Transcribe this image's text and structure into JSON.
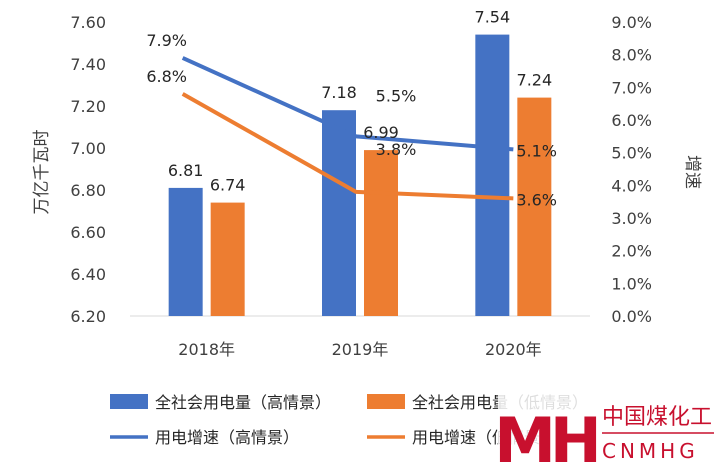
{
  "chart_data": {
    "type": "bar+line",
    "categories": [
      "2018年",
      "2019年",
      "2020年"
    ],
    "y_left": {
      "label": "万亿千瓦时",
      "lim": [
        6.2,
        7.6
      ],
      "ticks": [
        "6.20",
        "6.40",
        "6.60",
        "6.80",
        "7.00",
        "7.20",
        "7.40",
        "7.60"
      ]
    },
    "y_right": {
      "label": "增速",
      "lim": [
        0.0,
        9.0
      ],
      "ticks": [
        "0.0%",
        "1.0%",
        "2.0%",
        "3.0%",
        "4.0%",
        "5.0%",
        "6.0%",
        "7.0%",
        "8.0%",
        "9.0%"
      ]
    },
    "bar_series": [
      {
        "name": "全社会用电量（高情景）",
        "values": [
          6.81,
          7.18,
          7.54
        ],
        "labels": [
          "6.81",
          "7.18",
          "7.54"
        ],
        "color": "#4472C4"
      },
      {
        "name": "全社会用电量（低情景）",
        "values": [
          6.74,
          6.99,
          7.24
        ],
        "labels": [
          "6.74",
          "6.99",
          "7.24"
        ],
        "color": "#ED7D31"
      }
    ],
    "line_series": [
      {
        "name": "用电增速（高情景）",
        "values": [
          7.9,
          5.5,
          5.1
        ],
        "labels": [
          "7.9%",
          "5.5%",
          "5.1%"
        ],
        "color": "#4472C4"
      },
      {
        "name": "用电增速（低情景）",
        "values": [
          6.8,
          3.8,
          3.6
        ],
        "labels": [
          "6.8%",
          "3.8%",
          "3.6%"
        ],
        "color": "#ED7D31"
      }
    ],
    "legend_position": "bottom",
    "grid": false
  },
  "watermark": {
    "logo_letters": "MH",
    "name_cn": "中国煤化工",
    "name_en": "CNMHG",
    "color": "#c8102e"
  }
}
